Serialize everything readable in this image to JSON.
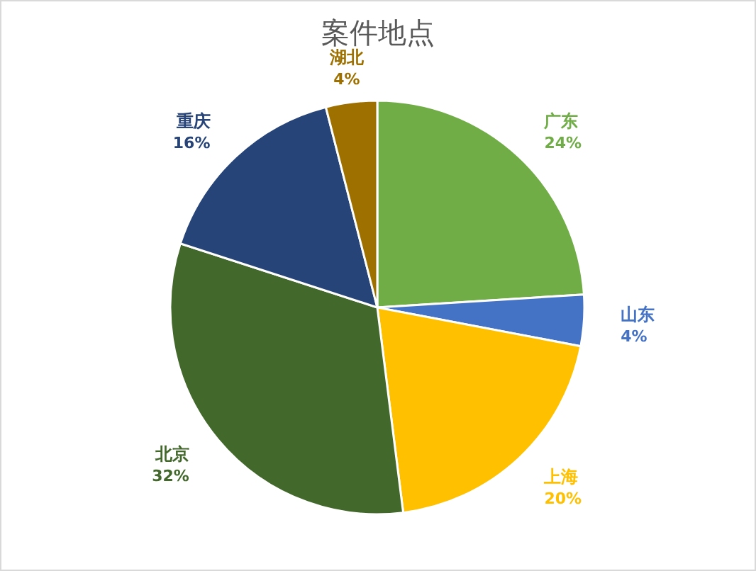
{
  "chart_data": {
    "type": "pie",
    "title": "案件地点",
    "categories": [
      "广东",
      "山东",
      "上海",
      "北京",
      "重庆",
      "湖北"
    ],
    "values": [
      24,
      4,
      20,
      32,
      16,
      4
    ],
    "value_labels": [
      "24%",
      "4%",
      "20%",
      "32%",
      "16%",
      "4%"
    ],
    "colors": [
      "#70ad47",
      "#4472c4",
      "#ffc000",
      "#43682b",
      "#264478",
      "#9e7000"
    ]
  }
}
